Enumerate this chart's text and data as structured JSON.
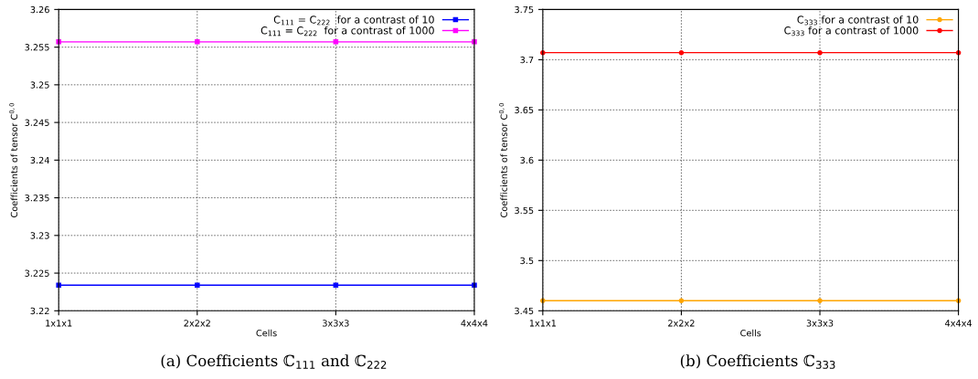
{
  "chart_data": [
    {
      "type": "line",
      "xlabel": "Cells",
      "ylabel": "Coefficients of tensor C$^{0,0}$",
      "categories": [
        "1x1x1",
        "2x2x2",
        "3x3x3",
        "4x4x4"
      ],
      "series": [
        {
          "name": "C$_{111}$ = C$_{222}$  for a contrast of 10",
          "color": "#0000ff",
          "values": [
            3.2234,
            3.2234,
            3.2234,
            3.2234
          ]
        },
        {
          "name": "C$_{111}$ = C$_{222}$  for a contrast of 1000",
          "color": "#ff00ff",
          "values": [
            3.2557,
            3.2557,
            3.2557,
            3.2557
          ]
        }
      ],
      "ylim": [
        3.22,
        3.26
      ],
      "yticks": [
        3.22,
        3.225,
        3.23,
        3.235,
        3.24,
        3.245,
        3.25,
        3.255,
        3.26
      ],
      "grid": true,
      "legend": "top right",
      "marker": "square",
      "line_style": "solid",
      "annotations": [
        "(a) Coefficients ℂ$_{111}$ and ℂ$_{222}$"
      ]
    },
    {
      "type": "line",
      "xlabel": "Cells",
      "ylabel": "Coefficients of tensor C$^{0,0}$",
      "categories": [
        "1x1x1",
        "2x2x2",
        "3x3x3",
        "4x4x4"
      ],
      "series": [
        {
          "name": "C$_{333}$ for a contrast of 10",
          "color": "#ffa500",
          "values": [
            3.46,
            3.46,
            3.46,
            3.46
          ]
        },
        {
          "name": "C$_{333}$ for a contrast of 1000",
          "color": "#ff0000",
          "values": [
            3.707,
            3.707,
            3.707,
            3.707
          ]
        }
      ],
      "ylim": [
        3.45,
        3.75
      ],
      "yticks": [
        3.45,
        3.5,
        3.55,
        3.6,
        3.65,
        3.7,
        3.75
      ],
      "grid": true,
      "legend": "top right",
      "marker": "circle",
      "line_style": "solid",
      "annotations": [
        "(b) Coefficients ℂ$_{333}$"
      ]
    }
  ]
}
